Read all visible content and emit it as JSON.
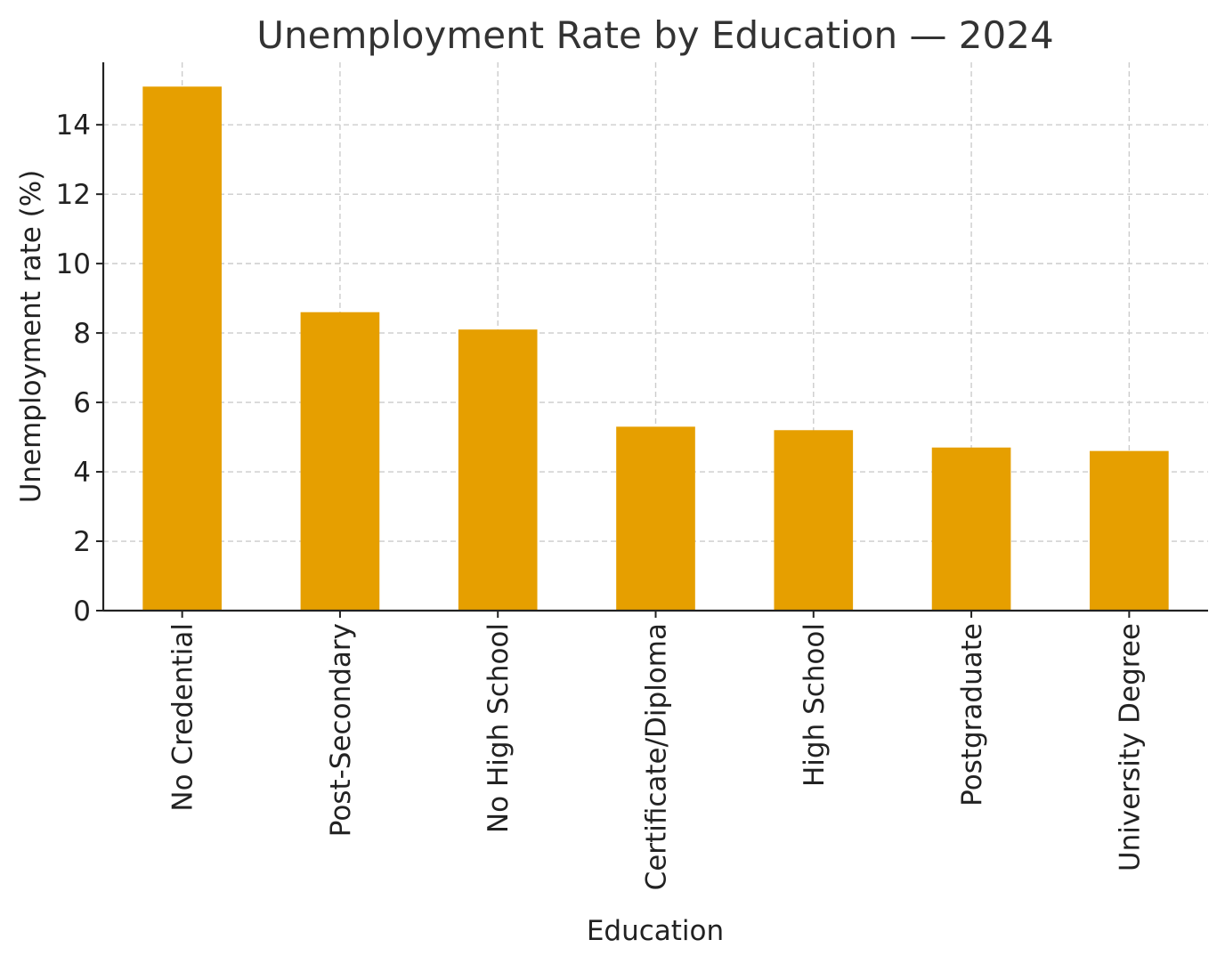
{
  "chart_data": {
    "type": "bar",
    "title": "Unemployment Rate by Education — 2024",
    "xlabel": "Education",
    "ylabel": "Unemployment rate (%)",
    "categories": [
      "No Credential",
      "Post-Secondary",
      "No High School",
      "Certificate/Diploma",
      "High School",
      "Postgraduate",
      "University Degree"
    ],
    "values": [
      15.1,
      8.6,
      8.1,
      5.3,
      5.2,
      4.7,
      4.6
    ],
    "ylim": [
      0,
      15.8
    ],
    "yticks": [
      0,
      2,
      4,
      6,
      8,
      10,
      12,
      14
    ],
    "grid": true,
    "colors": {
      "bar": "#E69F00",
      "grid": "#cccccc",
      "axis": "#222222",
      "title": "#333333"
    }
  }
}
